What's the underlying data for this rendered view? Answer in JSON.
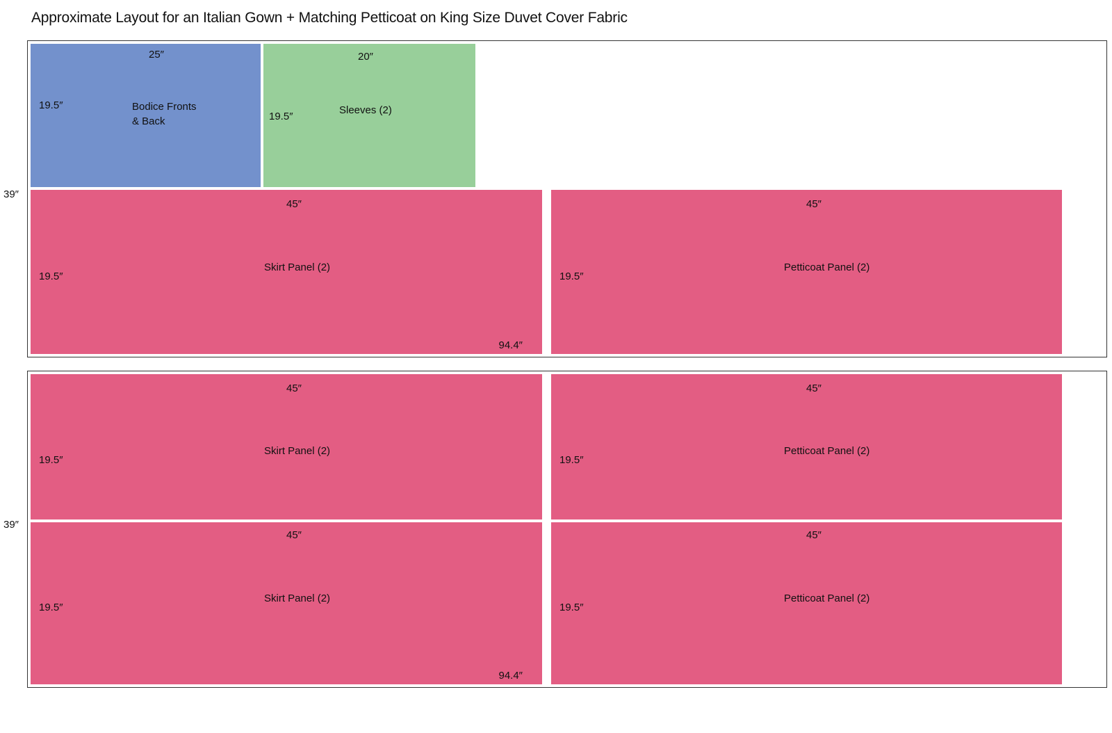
{
  "title": "Approximate Layout for an Italian Gown + Matching Petticoat on King Size Duvet Cover Fabric",
  "colors": {
    "bodice": "#7391cc",
    "sleeves": "#98cf9a",
    "panel": "#e35d83",
    "fabric_border": "#333333"
  },
  "fabric_sections": [
    {
      "height_label": "39″",
      "pieces": [
        {
          "name_lines": [
            "Bodice Fronts",
            "& Back"
          ],
          "width_label": "25″",
          "height_label": "19.5″",
          "color_key": "bodice"
        },
        {
          "name_lines": [
            "Sleeves (2)"
          ],
          "width_label": "20″",
          "height_label": "19.5″",
          "color_key": "sleeves"
        },
        {
          "name_lines": [
            "Skirt Panel (2)"
          ],
          "width_label": "45″",
          "height_label": "19.5″",
          "length_label": "94.4″",
          "color_key": "panel"
        },
        {
          "name_lines": [
            "Petticoat Panel (2)"
          ],
          "width_label": "45″",
          "height_label": "19.5″",
          "color_key": "panel"
        }
      ]
    },
    {
      "height_label": "39″",
      "pieces": [
        {
          "name_lines": [
            "Skirt Panel (2)"
          ],
          "width_label": "45″",
          "height_label": "19.5″",
          "color_key": "panel"
        },
        {
          "name_lines": [
            "Petticoat Panel (2)"
          ],
          "width_label": "45″",
          "height_label": "19.5″",
          "color_key": "panel"
        },
        {
          "name_lines": [
            "Skirt Panel (2)"
          ],
          "width_label": "45″",
          "height_label": "19.5″",
          "length_label": "94.4″",
          "color_key": "panel"
        },
        {
          "name_lines": [
            "Petticoat Panel (2)"
          ],
          "width_label": "45″",
          "height_label": "19.5″",
          "color_key": "panel"
        }
      ]
    }
  ]
}
